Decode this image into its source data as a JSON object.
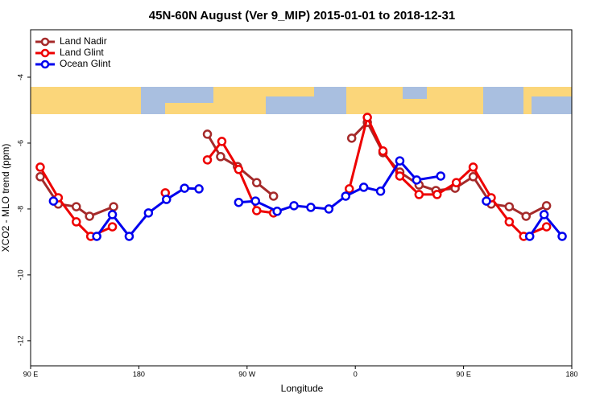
{
  "chart_data": {
    "type": "line",
    "title": "45N-60N August (Ver 9_MIP)   2015-01-01 to 2018-12-31",
    "x_label": "Longitude",
    "y_label": "XCO2 - MLO trend (ppm)",
    "xlim": [
      90,
      540
    ],
    "ylim": [
      -12.76,
      -2.56
    ],
    "xticks": [
      {
        "value": 90,
        "label": "90 E"
      },
      180,
      {
        "value": 270,
        "label": "90 W"
      },
      {
        "value": 360,
        "label": "0"
      },
      {
        "value": 450,
        "label": "90 E"
      },
      {
        "value": 540,
        "label": "180"
      }
    ],
    "yticks": [
      -4,
      -6,
      -8,
      -10,
      -12
    ],
    "legend": "top-left",
    "series": [
      {
        "name": "Land Nadir",
        "color": "#a52a2a",
        "x": [
          98,
          113,
          128,
          139,
          159,
          null,
          237,
          248,
          262,
          278,
          292,
          null,
          357,
          370,
          383,
          397,
          413,
          427,
          443,
          458,
          473,
          488,
          502,
          519
        ],
        "values": [
          -7.02,
          -7.85,
          -7.93,
          -8.22,
          -7.93,
          null,
          -5.73,
          -6.41,
          -6.71,
          -7.2,
          -7.61,
          null,
          -5.85,
          -5.37,
          -6.29,
          -6.88,
          -7.27,
          -7.44,
          -7.37,
          -7.02,
          -7.85,
          -7.93,
          -8.22,
          -7.9
        ]
      },
      {
        "name": "Land Glint",
        "color": "#ee0000",
        "x": [
          98,
          113,
          128,
          140,
          158,
          null,
          202,
          null,
          237,
          249,
          263,
          278,
          292,
          null,
          355,
          370,
          383,
          397,
          413,
          428,
          444,
          458,
          473,
          488,
          500,
          519
        ],
        "values": [
          -6.73,
          -7.66,
          -8.39,
          -8.83,
          -8.54,
          null,
          -7.51,
          null,
          -6.51,
          -5.95,
          -6.8,
          -8.05,
          -8.12,
          null,
          -7.39,
          -5.22,
          -6.24,
          -7.0,
          -7.56,
          -7.56,
          -7.2,
          -6.73,
          -7.66,
          -8.39,
          -8.83,
          -8.54
        ]
      },
      {
        "name": "Ocean Glint",
        "color": "#0000ee",
        "x": [
          109,
          null,
          145,
          158,
          172,
          188,
          203,
          218,
          230,
          null,
          263,
          277,
          295,
          309,
          323,
          338,
          352,
          367,
          381,
          397,
          411,
          431,
          null,
          469,
          null,
          505,
          517,
          532
        ],
        "values": [
          -7.76,
          null,
          -8.83,
          -8.17,
          -8.83,
          -8.12,
          -7.71,
          -7.37,
          -7.39,
          null,
          -7.8,
          -7.76,
          -8.07,
          -7.9,
          -7.95,
          -8.0,
          -7.61,
          -7.34,
          -7.46,
          -6.54,
          -7.12,
          -7.0,
          null,
          -7.76,
          null,
          -8.83,
          -8.17,
          -8.83
        ]
      }
    ]
  }
}
